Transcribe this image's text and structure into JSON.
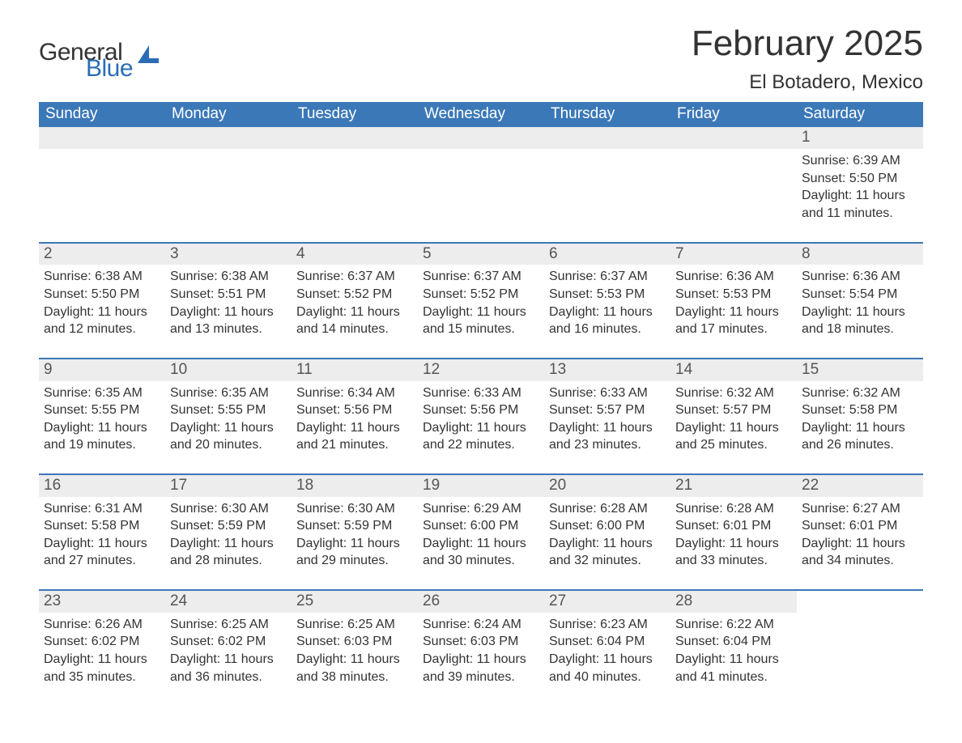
{
  "brand": {
    "text1": "General",
    "text2": "Blue",
    "accent_color": "#2a6db5",
    "text_color": "#333333"
  },
  "title": {
    "month": "February 2025",
    "location": "El Botadero, Mexico",
    "month_fontsize": 44,
    "location_fontsize": 24
  },
  "colors": {
    "header_bg": "#3b78b8",
    "header_text": "#ffffff",
    "daynum_bg": "#ededed",
    "daynum_text": "#555555",
    "week_divider": "#3b78b8",
    "body_text": "#333333",
    "page_bg": "#ffffff"
  },
  "days_of_week": [
    "Sunday",
    "Monday",
    "Tuesday",
    "Wednesday",
    "Thursday",
    "Friday",
    "Saturday"
  ],
  "layout": {
    "columns": 7,
    "first_day_column_index": 6,
    "rows": 5
  },
  "days": [
    {
      "n": "1",
      "sunrise": "Sunrise: 6:39 AM",
      "sunset": "Sunset: 5:50 PM",
      "daylight": "Daylight: 11 hours and 11 minutes."
    },
    {
      "n": "2",
      "sunrise": "Sunrise: 6:38 AM",
      "sunset": "Sunset: 5:50 PM",
      "daylight": "Daylight: 11 hours and 12 minutes."
    },
    {
      "n": "3",
      "sunrise": "Sunrise: 6:38 AM",
      "sunset": "Sunset: 5:51 PM",
      "daylight": "Daylight: 11 hours and 13 minutes."
    },
    {
      "n": "4",
      "sunrise": "Sunrise: 6:37 AM",
      "sunset": "Sunset: 5:52 PM",
      "daylight": "Daylight: 11 hours and 14 minutes."
    },
    {
      "n": "5",
      "sunrise": "Sunrise: 6:37 AM",
      "sunset": "Sunset: 5:52 PM",
      "daylight": "Daylight: 11 hours and 15 minutes."
    },
    {
      "n": "6",
      "sunrise": "Sunrise: 6:37 AM",
      "sunset": "Sunset: 5:53 PM",
      "daylight": "Daylight: 11 hours and 16 minutes."
    },
    {
      "n": "7",
      "sunrise": "Sunrise: 6:36 AM",
      "sunset": "Sunset: 5:53 PM",
      "daylight": "Daylight: 11 hours and 17 minutes."
    },
    {
      "n": "8",
      "sunrise": "Sunrise: 6:36 AM",
      "sunset": "Sunset: 5:54 PM",
      "daylight": "Daylight: 11 hours and 18 minutes."
    },
    {
      "n": "9",
      "sunrise": "Sunrise: 6:35 AM",
      "sunset": "Sunset: 5:55 PM",
      "daylight": "Daylight: 11 hours and 19 minutes."
    },
    {
      "n": "10",
      "sunrise": "Sunrise: 6:35 AM",
      "sunset": "Sunset: 5:55 PM",
      "daylight": "Daylight: 11 hours and 20 minutes."
    },
    {
      "n": "11",
      "sunrise": "Sunrise: 6:34 AM",
      "sunset": "Sunset: 5:56 PM",
      "daylight": "Daylight: 11 hours and 21 minutes."
    },
    {
      "n": "12",
      "sunrise": "Sunrise: 6:33 AM",
      "sunset": "Sunset: 5:56 PM",
      "daylight": "Daylight: 11 hours and 22 minutes."
    },
    {
      "n": "13",
      "sunrise": "Sunrise: 6:33 AM",
      "sunset": "Sunset: 5:57 PM",
      "daylight": "Daylight: 11 hours and 23 minutes."
    },
    {
      "n": "14",
      "sunrise": "Sunrise: 6:32 AM",
      "sunset": "Sunset: 5:57 PM",
      "daylight": "Daylight: 11 hours and 25 minutes."
    },
    {
      "n": "15",
      "sunrise": "Sunrise: 6:32 AM",
      "sunset": "Sunset: 5:58 PM",
      "daylight": "Daylight: 11 hours and 26 minutes."
    },
    {
      "n": "16",
      "sunrise": "Sunrise: 6:31 AM",
      "sunset": "Sunset: 5:58 PM",
      "daylight": "Daylight: 11 hours and 27 minutes."
    },
    {
      "n": "17",
      "sunrise": "Sunrise: 6:30 AM",
      "sunset": "Sunset: 5:59 PM",
      "daylight": "Daylight: 11 hours and 28 minutes."
    },
    {
      "n": "18",
      "sunrise": "Sunrise: 6:30 AM",
      "sunset": "Sunset: 5:59 PM",
      "daylight": "Daylight: 11 hours and 29 minutes."
    },
    {
      "n": "19",
      "sunrise": "Sunrise: 6:29 AM",
      "sunset": "Sunset: 6:00 PM",
      "daylight": "Daylight: 11 hours and 30 minutes."
    },
    {
      "n": "20",
      "sunrise": "Sunrise: 6:28 AM",
      "sunset": "Sunset: 6:00 PM",
      "daylight": "Daylight: 11 hours and 32 minutes."
    },
    {
      "n": "21",
      "sunrise": "Sunrise: 6:28 AM",
      "sunset": "Sunset: 6:01 PM",
      "daylight": "Daylight: 11 hours and 33 minutes."
    },
    {
      "n": "22",
      "sunrise": "Sunrise: 6:27 AM",
      "sunset": "Sunset: 6:01 PM",
      "daylight": "Daylight: 11 hours and 34 minutes."
    },
    {
      "n": "23",
      "sunrise": "Sunrise: 6:26 AM",
      "sunset": "Sunset: 6:02 PM",
      "daylight": "Daylight: 11 hours and 35 minutes."
    },
    {
      "n": "24",
      "sunrise": "Sunrise: 6:25 AM",
      "sunset": "Sunset: 6:02 PM",
      "daylight": "Daylight: 11 hours and 36 minutes."
    },
    {
      "n": "25",
      "sunrise": "Sunrise: 6:25 AM",
      "sunset": "Sunset: 6:03 PM",
      "daylight": "Daylight: 11 hours and 38 minutes."
    },
    {
      "n": "26",
      "sunrise": "Sunrise: 6:24 AM",
      "sunset": "Sunset: 6:03 PM",
      "daylight": "Daylight: 11 hours and 39 minutes."
    },
    {
      "n": "27",
      "sunrise": "Sunrise: 6:23 AM",
      "sunset": "Sunset: 6:04 PM",
      "daylight": "Daylight: 11 hours and 40 minutes."
    },
    {
      "n": "28",
      "sunrise": "Sunrise: 6:22 AM",
      "sunset": "Sunset: 6:04 PM",
      "daylight": "Daylight: 11 hours and 41 minutes."
    }
  ]
}
